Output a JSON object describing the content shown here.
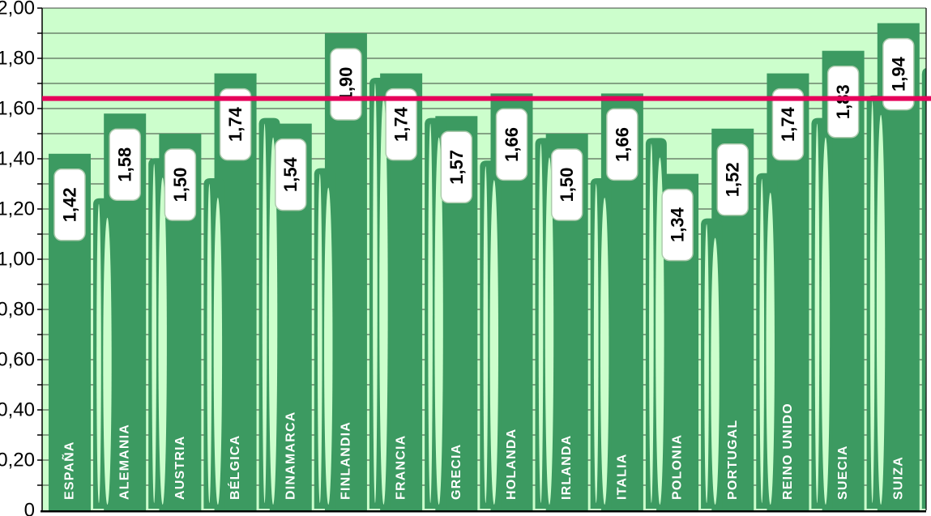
{
  "chart_data": {
    "type": "bar",
    "title": "",
    "xlabel": "",
    "ylabel": "",
    "categories": [
      "ESPAÑA",
      "ALEMANIA",
      "AUSTRIA",
      "BÉLGICA",
      "DINAMARCA",
      "FINLANDIA",
      "FRANCIA",
      "GRECIA",
      "HOLANDA",
      "IRLANDA",
      "ITALIA",
      "POLONIA",
      "PORTUGAL",
      "REINO UNIDO",
      "SUECIA",
      "SUIZA"
    ],
    "values": [
      1.42,
      1.58,
      1.5,
      1.74,
      1.54,
      1.9,
      1.74,
      1.57,
      1.66,
      1.5,
      1.66,
      1.34,
      1.52,
      1.74,
      1.83,
      1.94
    ],
    "value_labels": [
      "1,42",
      "1,58",
      "1,50",
      "1,74",
      "1,54",
      "1,90",
      "1,74",
      "1,57",
      "1,66",
      "1,50",
      "1,66",
      "1,34",
      "1,52",
      "1,74",
      "1,83",
      "1,94"
    ],
    "ylim": [
      0,
      2.0
    ],
    "grid": true,
    "grid_step": 0.1,
    "y_ticks": [
      {
        "value": 0.0,
        "label": "0"
      },
      {
        "value": 0.2,
        "label": "0,20"
      },
      {
        "value": 0.4,
        "label": "0,40"
      },
      {
        "value": 0.6,
        "label": "0,60"
      },
      {
        "value": 0.8,
        "label": "0,80"
      },
      {
        "value": 1.0,
        "label": "1,00"
      },
      {
        "value": 1.2,
        "label": "1,20"
      },
      {
        "value": 1.4,
        "label": "1,40"
      },
      {
        "value": 1.6,
        "label": "1,60"
      },
      {
        "value": 1.8,
        "label": "1,80"
      },
      {
        "value": 2.0,
        "label": "2,00"
      }
    ],
    "reference_line": {
      "value": 1.64,
      "color": "#E6005A"
    },
    "legend": null,
    "colors": {
      "bar": "#3C9A61",
      "plot_bg": "#CCFECC",
      "page_bg": "#FFFFFF",
      "grid": "#3C463C",
      "axis": "#000000",
      "bar_label_text": "#FFFFFF",
      "value_text": "#000000",
      "value_box_bg": "#FFFFFF",
      "value_box_border": "#AECBAE"
    }
  }
}
